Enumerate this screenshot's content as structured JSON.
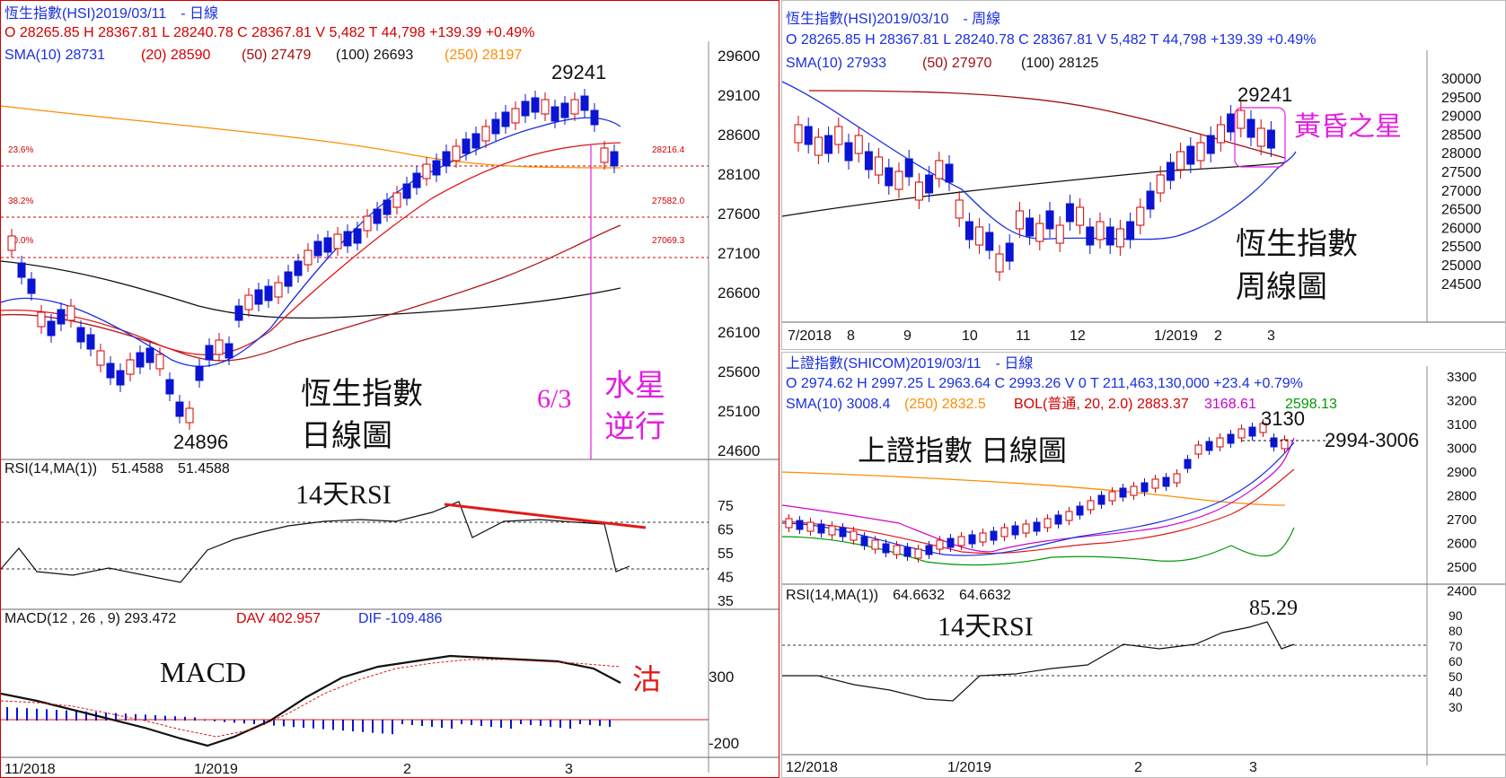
{
  "left": {
    "header1": "恆生指數(HSI)2019/03/11　- 日線",
    "header2": "O 28265.85 H 28367.81 L 28240.78 C 28367.81 V 5,482 T 44,798  +139.39  +0.49%",
    "sma": {
      "s10": "SMA(10) 28731",
      "s20": "(20) 28590",
      "s50": "(50) 27479",
      "s100": "(100) 26693",
      "s250": "(250) 28197"
    },
    "y_ticks": [
      "29600",
      "29100",
      "28600",
      "28100",
      "27600",
      "27100",
      "26600",
      "26100",
      "25600",
      "25100",
      "24600"
    ],
    "fib": [
      {
        "pct": "23.6%",
        "value": "28216.4"
      },
      {
        "pct": "38.2%",
        "value": "27582.0"
      },
      {
        "pct": "50.0%",
        "value": "27069.3"
      }
    ],
    "high_label": "29241",
    "low_label": "24896",
    "title_line1": "恆生指數",
    "title_line2": "日線圖",
    "date_note": "6/3",
    "mercury_line1": "水星",
    "mercury_line2": "逆行",
    "rsi_header": "RSI(14,MA(1))　51.4588　51.4588",
    "rsi_title": "14天RSI",
    "rsi_ticks": [
      "75",
      "65",
      "55",
      "45",
      "35"
    ],
    "macd_header_a": "MACD(12 , 26 , 9)  293.472",
    "macd_header_b": "DAV  402.957",
    "macd_header_c": "DIF  -109.486",
    "macd_title": "MACD",
    "macd_note": "沽",
    "macd_ticks": [
      "300",
      "-200"
    ],
    "x_labels": [
      "11/2018",
      "1/2019",
      "2",
      "3"
    ]
  },
  "right_top": {
    "header1": "恆生指數(HSI)2019/03/10　- 周線",
    "header2": "O 28265.85 H 28367.81 L 28240.78 C 28367.81 V 5,482 T 44,798  +139.39  +0.49%",
    "sma_a": "SMA(10) 27933",
    "sma_b": "(50) 27970",
    "sma_c": "(100) 28125",
    "y_ticks": [
      "30000",
      "29500",
      "29000",
      "28500",
      "28000",
      "27500",
      "27000",
      "26500",
      "26000",
      "25500",
      "25000",
      "24500"
    ],
    "high_label": "29241",
    "pattern_label": "黃昏之星",
    "title_line1": "恆生指數",
    "title_line2": "周線圖",
    "x_labels": [
      "7/2018",
      "8",
      "9",
      "10",
      "11",
      "12",
      "1/2019",
      "2",
      "3"
    ]
  },
  "right_bottom": {
    "header1": "上證指數(SHICOM)2019/03/11　- 日線",
    "header2": "O 2974.62 H 2997.25 L 2963.64 C 2993.26 V 0 T 211,463,130,000  +23.4  +0.79%",
    "sma_a": "SMA(10) 3008.4",
    "sma_b": "(250) 2832.5",
    "sma_c": "BOL(普通, 20, 2.0)  2883.37",
    "sma_d": "3168.61",
    "sma_e": "2598.13",
    "y_ticks": [
      "3300",
      "3200",
      "3100",
      "3000",
      "2900",
      "2800",
      "2700",
      "2600",
      "2500",
      "2400"
    ],
    "high_label": "3130",
    "range_label": "2994-3006",
    "title": "上證指數 日線圖",
    "rsi_header": "RSI(14,MA(1))　64.6632　64.6632",
    "rsi_title": "14天RSI",
    "rsi_peak": "85.29",
    "rsi_ticks": [
      "90",
      "80",
      "70",
      "60",
      "50",
      "40",
      "30"
    ],
    "x_labels": [
      "12/2018",
      "1/2019",
      "2",
      "3"
    ]
  },
  "colors": {
    "up": "#d40000",
    "down": "#0a14d2",
    "sma10": "#1a2fe0",
    "sma20": "#e01a1a",
    "sma50": "#b01818",
    "sma100": "#111111",
    "sma250": "#ff8c00",
    "boll_upper": "#cc00cc",
    "boll_lower": "#009900",
    "annotation_magenta": "#e020e0"
  }
}
